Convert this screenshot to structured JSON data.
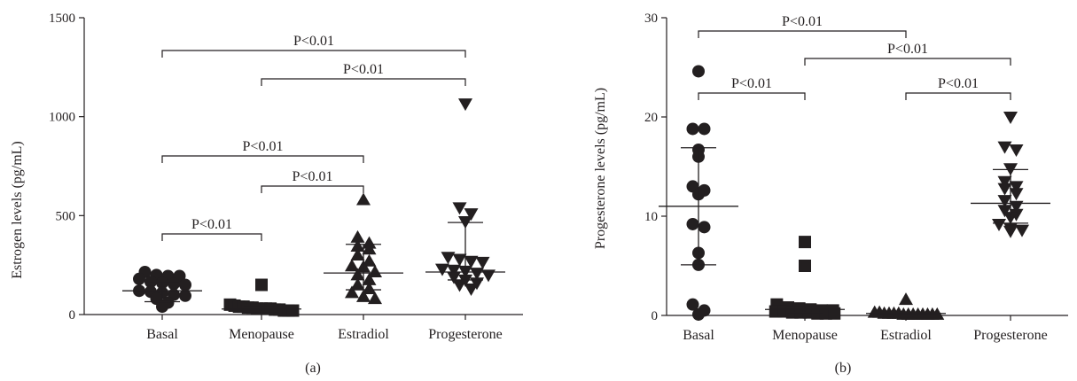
{
  "chart_data": [
    {
      "type": "scatter",
      "panel_label": "(a)",
      "ylabel": "Estrogen levels (pg/mL)",
      "ylim": [
        0,
        1500
      ],
      "yticks": [
        "0",
        "500",
        "1000",
        "1500"
      ],
      "categories": [
        "Basal",
        "Menopause",
        "Estradiol",
        "Progesterone"
      ],
      "markers": [
        "circle",
        "square",
        "triangle-up",
        "triangle-down"
      ],
      "series": [
        {
          "category": "Basal",
          "values": [
            215,
            200,
            195,
            195,
            180,
            165,
            160,
            155,
            150,
            120,
            115,
            110,
            100,
            95,
            80,
            60,
            40
          ],
          "summary": {
            "center": 120,
            "low": 65,
            "high": 165
          }
        },
        {
          "category": "Menopause",
          "values": [
            150,
            50,
            45,
            40,
            40,
            35,
            35,
            30,
            30,
            30,
            30,
            25,
            25,
            20,
            20,
            20
          ],
          "summary": {
            "center": 28,
            "low": 15,
            "high": 40
          }
        },
        {
          "category": "Estradiol",
          "values": [
            580,
            390,
            360,
            345,
            330,
            300,
            270,
            245,
            240,
            215,
            200,
            175,
            150,
            130,
            110,
            90,
            80
          ],
          "summary": {
            "center": 210,
            "low": 125,
            "high": 355
          }
        },
        {
          "category": "Progesterone",
          "values": [
            1065,
            540,
            510,
            470,
            290,
            280,
            270,
            265,
            230,
            225,
            220,
            210,
            200,
            190,
            175,
            160,
            150,
            130
          ],
          "summary": {
            "center": 215,
            "low": 175,
            "high": 465
          }
        }
      ],
      "annotations": [
        {
          "from": "Basal",
          "to": "Menopause",
          "text": "P<0.01"
        },
        {
          "from": "Menopause",
          "to": "Estradiol",
          "text": "P<0.01"
        },
        {
          "from": "Basal",
          "to": "Estradiol",
          "text": "P<0.01"
        },
        {
          "from": "Menopause",
          "to": "Progesterone",
          "text": "P<0.01"
        },
        {
          "from": "Basal",
          "to": "Progesterone",
          "text": "P<0.01"
        }
      ]
    },
    {
      "type": "scatter",
      "panel_label": "(b)",
      "ylabel": "Progesterone levels (pg/mL)",
      "ylim": [
        0,
        30
      ],
      "yticks": [
        "0",
        "10",
        "20",
        "30"
      ],
      "categories": [
        "Basal",
        "Menopause",
        "Estradiol",
        "Progesterone"
      ],
      "markers": [
        "circle",
        "square",
        "triangle-up",
        "triangle-down"
      ],
      "series": [
        {
          "category": "Basal",
          "values": [
            24.6,
            18.8,
            18.8,
            16.7,
            16.0,
            13.0,
            12.6,
            12.2,
            9.2,
            8.9,
            6.3,
            5.1,
            1.1,
            0.5,
            0.1
          ],
          "summary": {
            "center": 11.0,
            "low": 5.1,
            "high": 16.9
          }
        },
        {
          "category": "Menopause",
          "values": [
            7.4,
            5.0,
            1.1,
            0.8,
            0.7,
            0.6,
            0.5,
            0.5,
            0.4,
            0.4,
            0.3,
            0.3,
            0.3,
            0.2,
            0.2,
            0.2
          ],
          "summary": {
            "center": 0.6,
            "low": 0.3,
            "high": 0.9
          }
        },
        {
          "category": "Estradiol",
          "values": [
            1.6,
            0.3,
            0.3,
            0.2,
            0.2,
            0.2,
            0.2,
            0.1,
            0.1,
            0.1,
            0.1,
            0.1,
            0.1,
            0.1,
            0.1
          ],
          "summary": {
            "center": 0.2,
            "low": 0.1,
            "high": 0.3
          }
        },
        {
          "category": "Progesterone",
          "values": [
            20.0,
            17.0,
            16.7,
            14.8,
            13.5,
            13.0,
            12.8,
            12.3,
            11.6,
            11.0,
            10.6,
            10.2,
            9.9,
            9.2,
            8.8,
            8.6,
            8.5
          ],
          "summary": {
            "center": 11.3,
            "low": 9.3,
            "high": 14.7
          }
        }
      ],
      "annotations": [
        {
          "from": "Basal",
          "to": "Menopause",
          "text": "P<0.01"
        },
        {
          "from": "Estradiol",
          "to": "Progesterone",
          "text": "P<0.01"
        },
        {
          "from": "Menopause",
          "to": "Progesterone",
          "text": "P<0.01"
        },
        {
          "from": "Basal",
          "to": "Estradiol",
          "text": "P<0.01"
        }
      ]
    }
  ]
}
